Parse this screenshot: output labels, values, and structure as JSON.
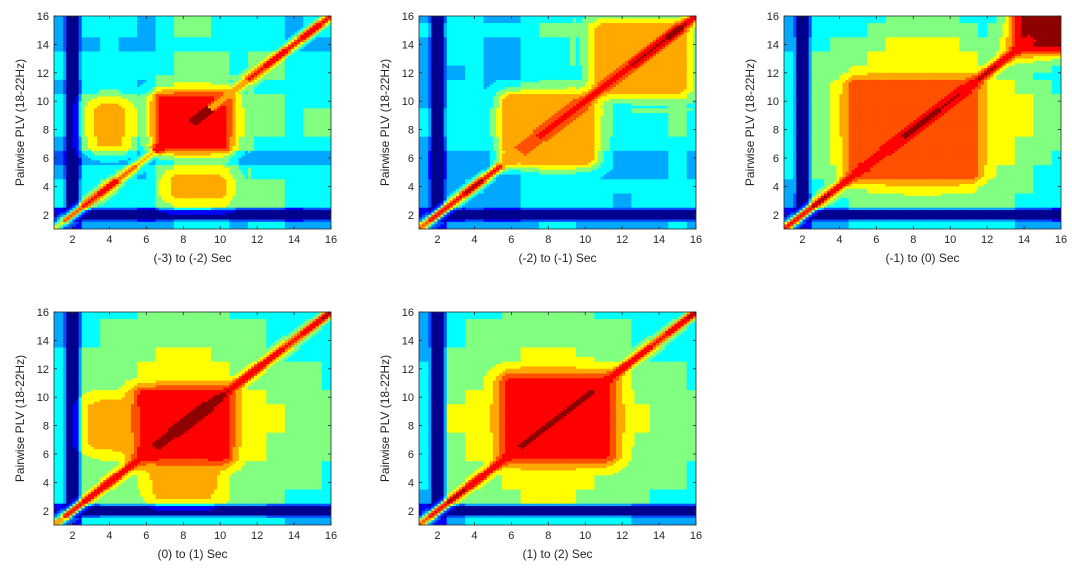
{
  "chart_data": [
    {
      "type": "heatmap",
      "subtype": "filled-contour",
      "xlabel": "(-3) to (-2) Sec",
      "ylabel": "Pairwise PLV (18-22Hz)",
      "xlim": [
        1,
        16
      ],
      "ylim": [
        1,
        16
      ],
      "xticks": [
        2,
        4,
        6,
        8,
        10,
        12,
        14,
        16
      ],
      "yticks": [
        2,
        4,
        6,
        8,
        10,
        12,
        14,
        16
      ],
      "colormap": "jet",
      "z_min": 0,
      "z_max": 1,
      "diag_seq": [
        0.55,
        0.75,
        0.88,
        0.9,
        0.75,
        0.65,
        0.88,
        0.9,
        0.95,
        0.7,
        0.7,
        0.85,
        0.9,
        0.9,
        0.9,
        0.85
      ],
      "row_base": [
        0.3,
        0.05,
        0.5,
        0.5,
        0.45,
        0.25,
        0.45,
        0.6,
        0.6,
        0.55,
        0.45,
        0.5,
        0.5,
        0.35,
        0.4,
        0.4
      ],
      "col_base": [
        0.25,
        0.05,
        0.35,
        0.4,
        0.35,
        0.25,
        0.4,
        0.55,
        0.55,
        0.5,
        0.4,
        0.45,
        0.45,
        0.3,
        0.35,
        0.35
      ],
      "blocks": [
        {
          "x": [
            7,
            10
          ],
          "y": [
            7,
            10
          ],
          "z": 0.88
        },
        {
          "x": [
            3.5,
            4.5
          ],
          "y": [
            7,
            9.5
          ],
          "z": 0.65
        },
        {
          "x": [
            7.5,
            10
          ],
          "y": [
            3.5,
            4.5
          ],
          "z": 0.65
        }
      ]
    },
    {
      "type": "heatmap",
      "subtype": "filled-contour",
      "xlabel": "(-2) to (-1) Sec",
      "ylabel": "Pairwise PLV (18-22Hz)",
      "xlim": [
        1,
        16
      ],
      "ylim": [
        1,
        16
      ],
      "xticks": [
        2,
        4,
        6,
        8,
        10,
        12,
        14,
        16
      ],
      "yticks": [
        2,
        4,
        6,
        8,
        10,
        12,
        14,
        16
      ],
      "colormap": "jet",
      "z_min": 0,
      "z_max": 1,
      "diag_seq": [
        0.8,
        0.85,
        0.9,
        0.92,
        0.85,
        0.7,
        0.8,
        0.85,
        0.88,
        0.88,
        0.9,
        0.9,
        0.92,
        0.92,
        0.95,
        0.9
      ],
      "row_base": [
        0.3,
        0.05,
        0.35,
        0.4,
        0.3,
        0.3,
        0.45,
        0.5,
        0.5,
        0.45,
        0.45,
        0.4,
        0.45,
        0.45,
        0.5,
        0.45
      ],
      "col_base": [
        0.25,
        0.05,
        0.3,
        0.35,
        0.25,
        0.25,
        0.4,
        0.45,
        0.45,
        0.4,
        0.4,
        0.35,
        0.4,
        0.4,
        0.45,
        0.4
      ],
      "blocks": [
        {
          "x": [
            6,
            10
          ],
          "y": [
            6,
            10
          ],
          "z": 0.72
        },
        {
          "x": [
            11,
            15
          ],
          "y": [
            11,
            15
          ],
          "z": 0.7
        }
      ]
    },
    {
      "type": "heatmap",
      "subtype": "filled-contour",
      "xlabel": "(-1) to (0) Sec",
      "ylabel": "Pairwise PLV (18-22Hz)",
      "xlim": [
        1,
        16
      ],
      "ylim": [
        1,
        16
      ],
      "xticks": [
        2,
        4,
        6,
        8,
        10,
        12,
        14,
        16
      ],
      "yticks": [
        2,
        4,
        6,
        8,
        10,
        12,
        14,
        16
      ],
      "colormap": "jet",
      "z_min": 0,
      "z_max": 1,
      "diag_seq": [
        0.85,
        0.9,
        0.92,
        0.9,
        0.88,
        0.85,
        0.9,
        0.95,
        0.95,
        0.92,
        0.9,
        0.92,
        0.9,
        0.88,
        0.92,
        0.95
      ],
      "row_base": [
        0.25,
        0.05,
        0.45,
        0.5,
        0.55,
        0.6,
        0.62,
        0.65,
        0.65,
        0.65,
        0.6,
        0.55,
        0.55,
        0.5,
        0.4,
        0.35
      ],
      "col_base": [
        0.2,
        0.05,
        0.4,
        0.45,
        0.5,
        0.55,
        0.6,
        0.62,
        0.62,
        0.6,
        0.55,
        0.5,
        0.5,
        0.45,
        0.35,
        0.3
      ],
      "blocks": [
        {
          "x": [
            5,
            11
          ],
          "y": [
            5,
            11
          ],
          "z": 0.8
        },
        {
          "x": [
            14,
            16
          ],
          "y": [
            14,
            16
          ],
          "z": 0.92
        }
      ]
    },
    {
      "type": "heatmap",
      "subtype": "filled-contour",
      "xlabel": "(0) to (1) Sec",
      "ylabel": "Pairwise PLV (18-22Hz)",
      "xlim": [
        1,
        16
      ],
      "ylim": [
        1,
        16
      ],
      "xticks": [
        2,
        4,
        6,
        8,
        10,
        12,
        14,
        16
      ],
      "yticks": [
        2,
        4,
        6,
        8,
        10,
        12,
        14,
        16
      ],
      "colormap": "jet",
      "z_min": 0,
      "z_max": 1,
      "diag_seq": [
        0.7,
        0.88,
        0.9,
        0.9,
        0.88,
        0.85,
        0.92,
        0.95,
        0.95,
        0.92,
        0.9,
        0.9,
        0.88,
        0.85,
        0.9,
        0.92
      ],
      "row_base": [
        0.3,
        0.05,
        0.5,
        0.55,
        0.55,
        0.6,
        0.62,
        0.65,
        0.65,
        0.62,
        0.55,
        0.55,
        0.5,
        0.45,
        0.45,
        0.4
      ],
      "col_base": [
        0.25,
        0.05,
        0.45,
        0.5,
        0.5,
        0.55,
        0.6,
        0.6,
        0.6,
        0.58,
        0.5,
        0.5,
        0.45,
        0.4,
        0.4,
        0.35
      ],
      "blocks": [
        {
          "x": [
            6,
            10
          ],
          "y": [
            6,
            10
          ],
          "z": 0.9
        },
        {
          "x": [
            3.5,
            4.5
          ],
          "y": [
            7,
            9
          ],
          "z": 0.72
        },
        {
          "x": [
            7,
            9
          ],
          "y": [
            3.5,
            4.5
          ],
          "z": 0.72
        }
      ]
    },
    {
      "type": "heatmap",
      "subtype": "filled-contour",
      "xlabel": "(1) to (2) Sec",
      "ylabel": "Pairwise PLV (18-22Hz)",
      "xlim": [
        1,
        16
      ],
      "ylim": [
        1,
        16
      ],
      "xticks": [
        2,
        4,
        6,
        8,
        10,
        12,
        14,
        16
      ],
      "yticks": [
        2,
        4,
        6,
        8,
        10,
        12,
        14,
        16
      ],
      "colormap": "jet",
      "z_min": 0,
      "z_max": 1,
      "diag_seq": [
        0.75,
        0.9,
        0.92,
        0.9,
        0.88,
        0.85,
        0.92,
        0.95,
        0.95,
        0.92,
        0.9,
        0.9,
        0.88,
        0.88,
        0.9,
        0.95
      ],
      "row_base": [
        0.25,
        0.05,
        0.5,
        0.55,
        0.55,
        0.6,
        0.62,
        0.65,
        0.65,
        0.62,
        0.55,
        0.55,
        0.5,
        0.45,
        0.45,
        0.4
      ],
      "col_base": [
        0.2,
        0.05,
        0.45,
        0.5,
        0.5,
        0.55,
        0.6,
        0.6,
        0.6,
        0.58,
        0.5,
        0.5,
        0.45,
        0.4,
        0.4,
        0.35
      ],
      "blocks": [
        {
          "x": [
            6,
            11
          ],
          "y": [
            6,
            11
          ],
          "z": 0.85
        }
      ]
    }
  ]
}
